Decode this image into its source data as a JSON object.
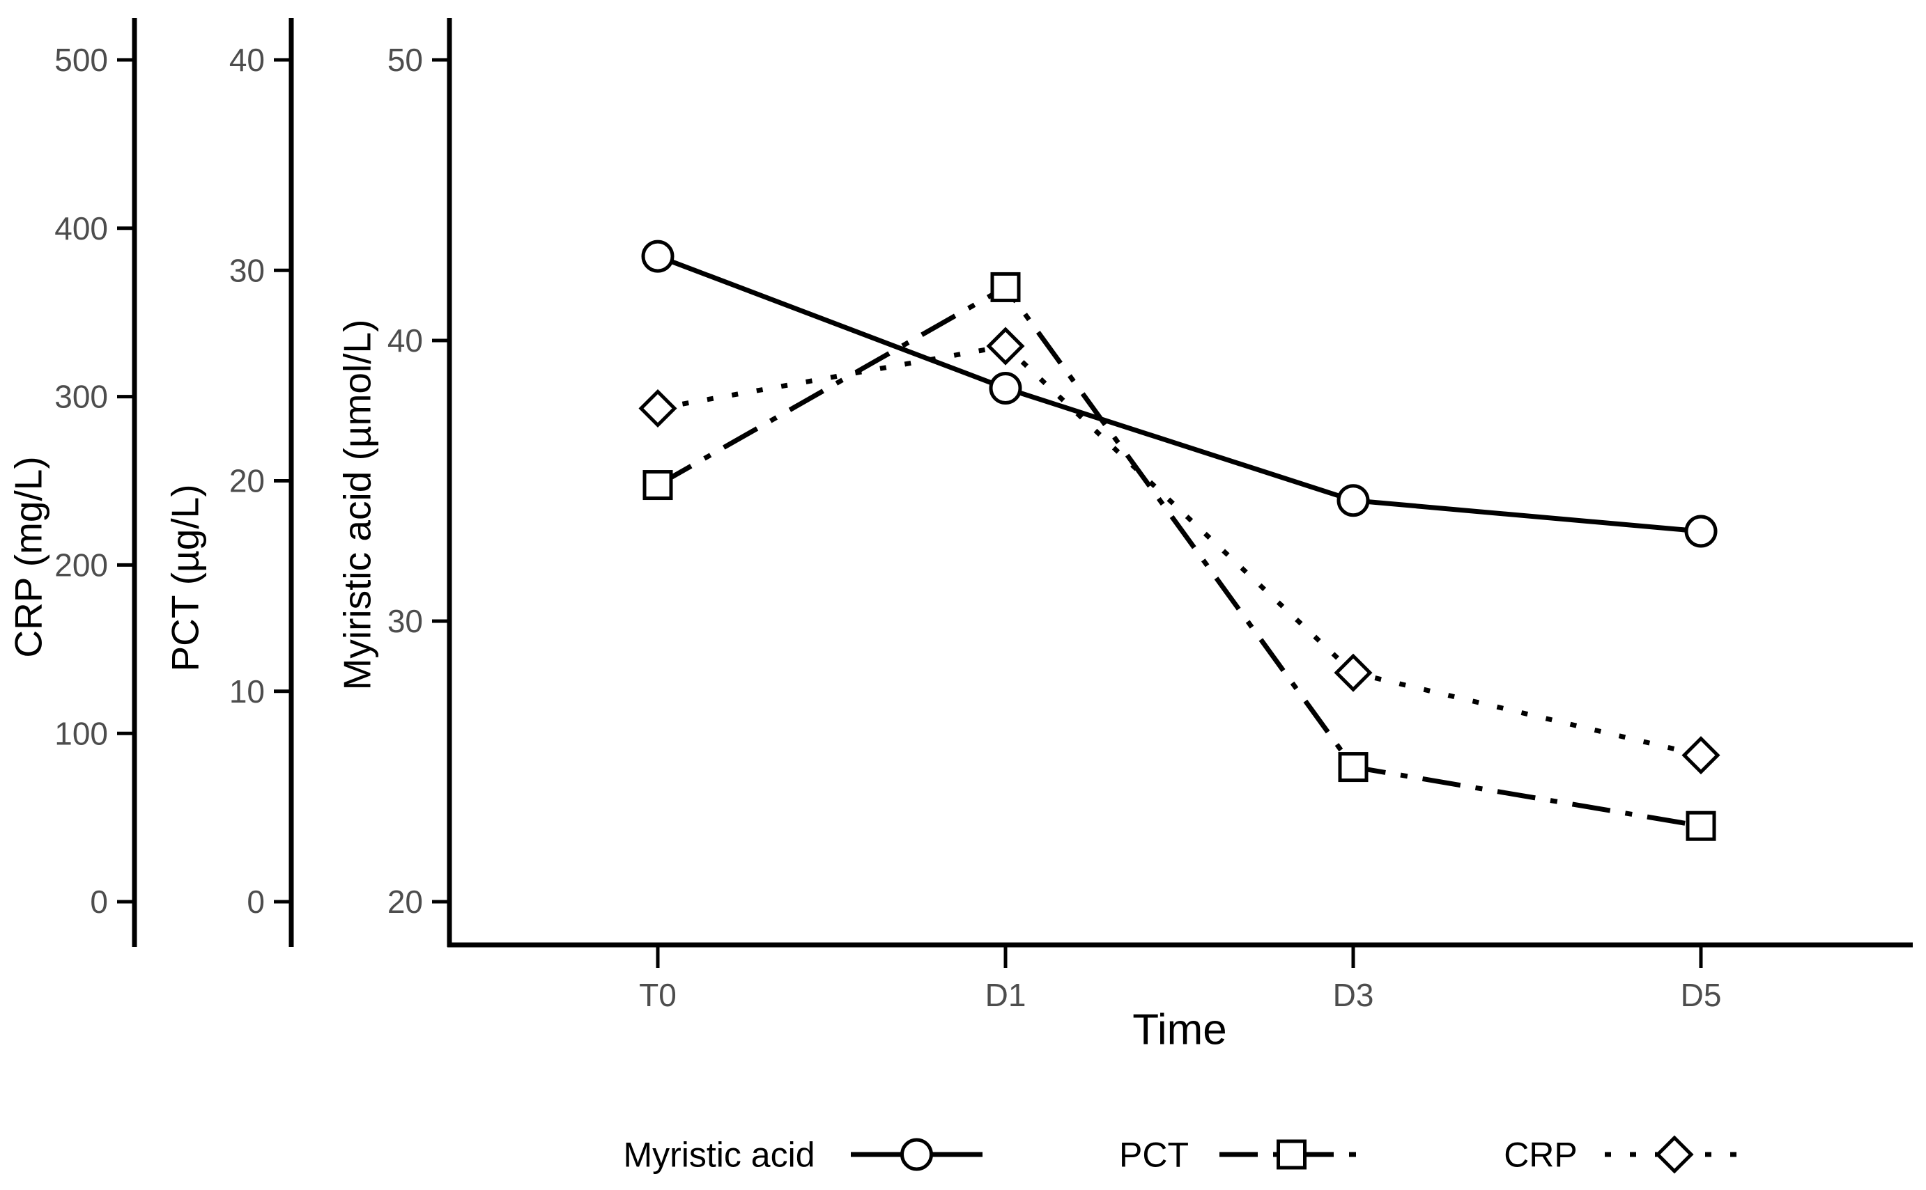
{
  "figure": {
    "background": "#ffffff",
    "line_color": "#000000",
    "tick_label_color": "#4d4d4d",
    "title_color": "#000000"
  },
  "chart_data": {
    "type": "line",
    "x_categories": [
      "T0",
      "D1",
      "D3",
      "D5"
    ],
    "xlabel": "Time",
    "grid": false,
    "axes": [
      {
        "id": "crp",
        "label": "CRP (mg/L)",
        "min": 0,
        "max": 500,
        "ticks": [
          0,
          100,
          200,
          300,
          400,
          500
        ]
      },
      {
        "id": "pct",
        "label": "PCT (µg/L)",
        "min": 0,
        "max": 40,
        "ticks": [
          0,
          10,
          20,
          30,
          40
        ]
      },
      {
        "id": "myristic",
        "label": "Myiristic acid (µmol/L)",
        "min": 20,
        "max": 50,
        "ticks": [
          20,
          30,
          40,
          50
        ]
      }
    ],
    "series": [
      {
        "name": "Myristic acid",
        "axis": "myristic",
        "marker": "circle",
        "line_style": "solid",
        "values": [
          43.0,
          38.3,
          34.3,
          33.2
        ]
      },
      {
        "name": "PCT",
        "axis": "pct",
        "marker": "square",
        "line_style": "dash-dot",
        "values": [
          19.8,
          29.2,
          6.4,
          3.6
        ]
      },
      {
        "name": "CRP",
        "axis": "crp",
        "marker": "diamond",
        "line_style": "dotted",
        "values": [
          293,
          330,
          136,
          87
        ]
      }
    ],
    "legend": {
      "position": "bottom",
      "items": [
        "Myristic acid",
        "PCT",
        "CRP"
      ]
    }
  }
}
